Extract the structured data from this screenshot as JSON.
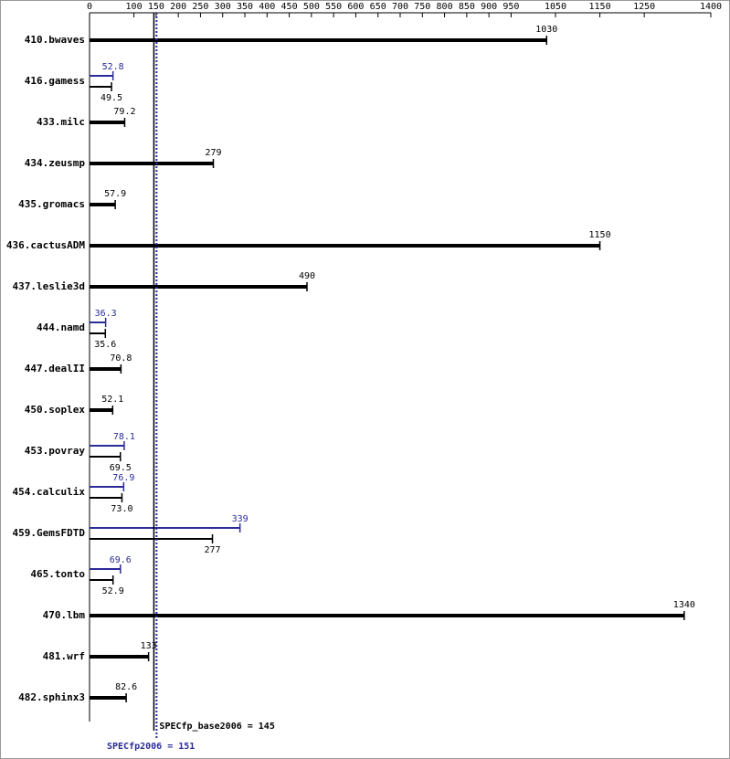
{
  "chart_data": {
    "type": "bar",
    "orientation": "horizontal",
    "categories": [
      "410.bwaves",
      "416.gamess",
      "433.milc",
      "434.zeusmp",
      "435.gromacs",
      "436.cactusADM",
      "437.leslie3d",
      "444.namd",
      "447.dealII",
      "450.soplex",
      "453.povray",
      "454.calculix",
      "459.GemsFDTD",
      "465.tonto",
      "470.lbm",
      "481.wrf",
      "482.sphinx3"
    ],
    "series": [
      {
        "name": "SPECfp_base2006",
        "color": "#000000",
        "values": [
          1030,
          49.5,
          79.2,
          279,
          57.9,
          1150,
          490,
          35.6,
          70.8,
          52.1,
          69.5,
          73.0,
          277,
          52.9,
          1340,
          133,
          82.6
        ],
        "value_labels": [
          "1030",
          "49.5",
          "79.2",
          "279",
          "57.9",
          "1150",
          "490",
          "35.6",
          "70.8",
          "52.1",
          "69.5",
          "73.0",
          "277",
          "52.9",
          "1340",
          "133",
          "82.6"
        ]
      },
      {
        "name": "SPECfp2006",
        "color": "#2b2b99",
        "values": [
          null,
          52.8,
          null,
          null,
          null,
          null,
          null,
          36.3,
          null,
          null,
          78.1,
          76.9,
          339,
          69.6,
          null,
          null,
          null
        ]
      }
    ],
    "xlim": [
      0,
      1400
    ],
    "xticks": [
      0,
      100,
      150,
      200,
      250,
      300,
      350,
      400,
      450,
      500,
      550,
      600,
      650,
      700,
      750,
      800,
      850,
      900,
      950,
      1050,
      1150,
      1250,
      1400
    ],
    "reference_lines": [
      {
        "value": 145,
        "label": "SPECfp_base2006 = 145",
        "color": "#000000",
        "style": "solid"
      },
      {
        "value": 151,
        "label": "SPECfp2006 = 151",
        "color": "#2b2b99",
        "style": "dotted"
      }
    ]
  }
}
